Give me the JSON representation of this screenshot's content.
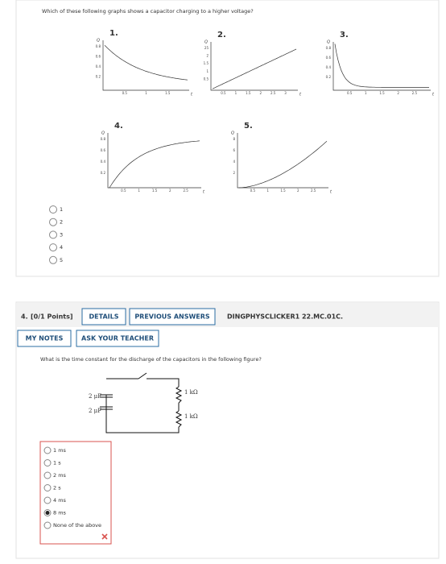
{
  "question3": {
    "prompt": "Which of these following graphs shows a capacitor charging to a higher voltage?",
    "graphs": [
      {
        "number": "1.",
        "y_label": "Q",
        "x_label": "t",
        "y_ticks": [
          "0.8",
          "0.6",
          "0.4",
          "0.2"
        ],
        "x_ticks": [
          "0.5",
          "1",
          "1.5"
        ]
      },
      {
        "number": "2.",
        "y_label": "Q",
        "x_label": "t",
        "y_ticks": [
          "25",
          "2",
          "1.5",
          "1",
          "0.5"
        ],
        "x_ticks": [
          "0.5",
          "1",
          "1.5",
          "2",
          "2.5",
          "3"
        ]
      },
      {
        "number": "3.",
        "y_label": "Q",
        "x_label": "t",
        "y_ticks": [
          "0.8",
          "0.6",
          "0.4",
          "0.2"
        ],
        "x_ticks": [
          "0.5",
          "1",
          "1.5",
          "2",
          "2.5"
        ]
      },
      {
        "number": "4.",
        "y_label": "Q",
        "x_label": "t",
        "y_ticks": [
          "0.8",
          "0.6",
          "0.4",
          "0.2"
        ],
        "x_ticks": [
          "0.5",
          "1",
          "1.5",
          "2",
          "2.5"
        ]
      },
      {
        "number": "5.",
        "y_label": "Q",
        "x_label": "t",
        "y_ticks": [
          "8",
          "6",
          "4",
          "2"
        ],
        "x_ticks": [
          "0.5",
          "1",
          "1.5",
          "2",
          "2.5"
        ]
      }
    ],
    "options": [
      "1",
      "2",
      "3",
      "4",
      "5"
    ]
  },
  "question4": {
    "number": "4.",
    "points": "[0/1 Points]",
    "buttons": [
      "DETAILS",
      "PREVIOUS ANSWERS"
    ],
    "code": "DINGPHYSCLICKER1 22.MC.01C.",
    "tools": [
      "MY NOTES",
      "ASK YOUR TEACHER"
    ],
    "prompt": "What is the time constant for the discharge of the capacitors in the following figure?",
    "circuit": {
      "capacitors": [
        "2 μF",
        "2 μF"
      ],
      "resistors": [
        "1 kΩ",
        "1 kΩ"
      ]
    },
    "options": [
      "1 ms",
      "1 s",
      "2 ms",
      "2 s",
      "4 ms",
      "8 ms",
      "None of the above"
    ],
    "selected_index": 5
  }
}
